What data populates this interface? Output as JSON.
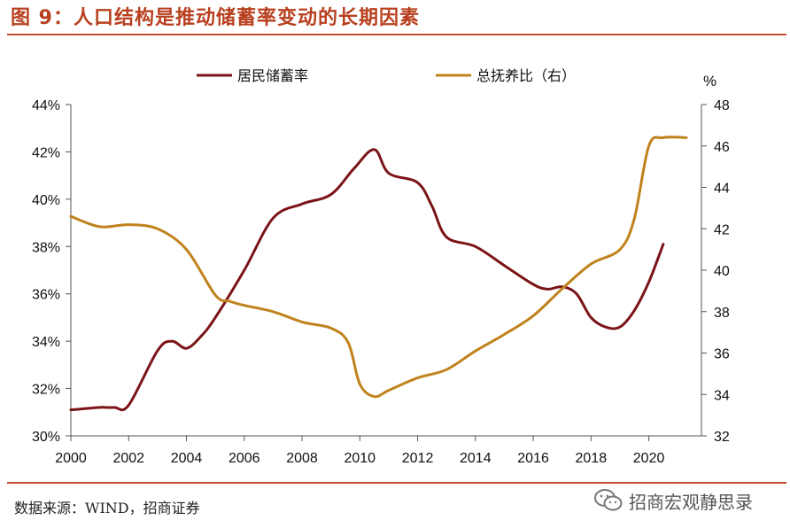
{
  "header": {
    "title": "图 9：人口结构是推动储蓄率变动的长期因素"
  },
  "footer": {
    "source": "数据来源：WIND，招商证券",
    "watermark": "招商宏观静思录"
  },
  "icons": {
    "watermark_icon": "wechat-icon"
  },
  "colors": {
    "title": "#b8401f",
    "rule": "#c0502c",
    "savings": "#7b1418",
    "dependency": "#c0821c"
  },
  "chart_data": {
    "type": "line",
    "x_ticks": [
      "2000",
      "2002",
      "2004",
      "2006",
      "2008",
      "2010",
      "2012",
      "2014",
      "2016",
      "2018",
      "2020"
    ],
    "xlim": [
      2000,
      2021.3
    ],
    "y_left": {
      "min": 30,
      "max": 44,
      "step": 2,
      "ticks": [
        "30%",
        "32%",
        "34%",
        "36%",
        "38%",
        "40%",
        "42%",
        "44%"
      ]
    },
    "y_right": {
      "min": 32,
      "max": 48,
      "step": 2,
      "unit": "%",
      "ticks": [
        "32",
        "34",
        "36",
        "38",
        "40",
        "42",
        "44",
        "46",
        "48"
      ]
    },
    "legend": {
      "position": "top"
    },
    "series": [
      {
        "name": "居民储蓄率",
        "axis": "left",
        "x": [
          2000,
          2001,
          2001.5,
          2002,
          2003,
          2003.5,
          2004,
          2004.5,
          2005,
          2006,
          2007,
          2008,
          2009,
          2009.8,
          2010.5,
          2011,
          2012,
          2012.5,
          2013,
          2014,
          2015,
          2016,
          2016.5,
          2017,
          2017.5,
          2018,
          2018.5,
          2019,
          2019.5,
          2020,
          2020.5
        ],
        "values": [
          31.1,
          31.2,
          31.2,
          31.3,
          33.6,
          34.0,
          33.7,
          34.2,
          35.0,
          37.0,
          39.2,
          39.8,
          40.2,
          41.3,
          42.1,
          41.1,
          40.7,
          39.7,
          38.4,
          38.0,
          37.2,
          36.4,
          36.2,
          36.3,
          36.0,
          35.0,
          34.6,
          34.6,
          35.3,
          36.5,
          38.1
        ]
      },
      {
        "name": "总抚养比（右）",
        "axis": "right",
        "x": [
          2000,
          2001,
          2002,
          2003,
          2004,
          2005,
          2005.5,
          2006,
          2007,
          2008,
          2009,
          2009.6,
          2010,
          2010.5,
          2011,
          2012,
          2013,
          2014,
          2015,
          2016,
          2017,
          2018,
          2019,
          2019.5,
          2020,
          2020.5,
          2021.3
        ],
        "values": [
          42.6,
          42.1,
          42.2,
          42.0,
          41.0,
          38.8,
          38.5,
          38.3,
          38.0,
          37.5,
          37.2,
          36.5,
          34.5,
          33.9,
          34.2,
          34.8,
          35.2,
          36.1,
          36.9,
          37.8,
          39.1,
          40.3,
          41.0,
          42.5,
          46.0,
          46.4,
          46.4
        ]
      }
    ]
  }
}
